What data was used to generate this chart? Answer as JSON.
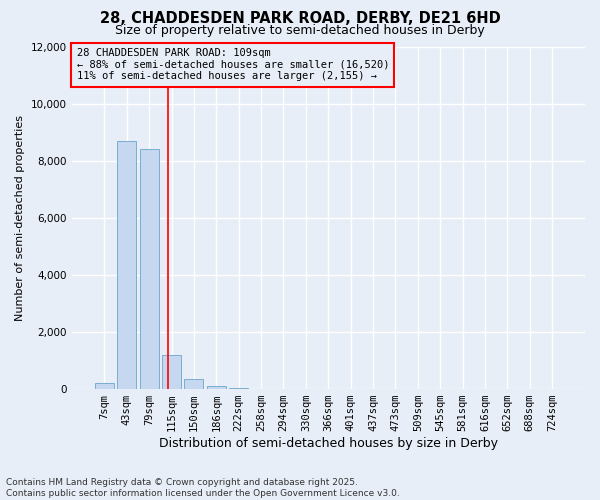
{
  "title": "28, CHADDESDEN PARK ROAD, DERBY, DE21 6HD",
  "subtitle": "Size of property relative to semi-detached houses in Derby",
  "xlabel": "Distribution of semi-detached houses by size in Derby",
  "ylabel": "Number of semi-detached properties",
  "bin_labels": [
    "7sqm",
    "43sqm",
    "79sqm",
    "115sqm",
    "150sqm",
    "186sqm",
    "222sqm",
    "258sqm",
    "294sqm",
    "330sqm",
    "366sqm",
    "401sqm",
    "437sqm",
    "473sqm",
    "509sqm",
    "545sqm",
    "581sqm",
    "616sqm",
    "652sqm",
    "688sqm",
    "724sqm"
  ],
  "bar_heights": [
    220,
    8700,
    8400,
    1200,
    350,
    100,
    55,
    10,
    0,
    0,
    0,
    0,
    0,
    0,
    0,
    0,
    0,
    0,
    0,
    0,
    0
  ],
  "bar_color": "#c5d8f0",
  "bar_edge_color": "#7aadd4",
  "ylim": [
    0,
    12000
  ],
  "yticks": [
    0,
    2000,
    4000,
    6000,
    8000,
    10000,
    12000
  ],
  "red_line_x": 2.83,
  "annotation_line1": "28 CHADDESDEN PARK ROAD: 109sqm",
  "annotation_line2": "← 88% of semi-detached houses are smaller (16,520)",
  "annotation_line3": "11% of semi-detached houses are larger (2,155) →",
  "footer1": "Contains HM Land Registry data © Crown copyright and database right 2025.",
  "footer2": "Contains public sector information licensed under the Open Government Licence v3.0.",
  "background_color": "#e8eef7",
  "grid_color": "#ffffff",
  "title_fontsize": 10.5,
  "subtitle_fontsize": 9,
  "ylabel_fontsize": 8,
  "xlabel_fontsize": 9,
  "tick_fontsize": 7.5,
  "annotation_fontsize": 7.5,
  "footer_fontsize": 6.5
}
